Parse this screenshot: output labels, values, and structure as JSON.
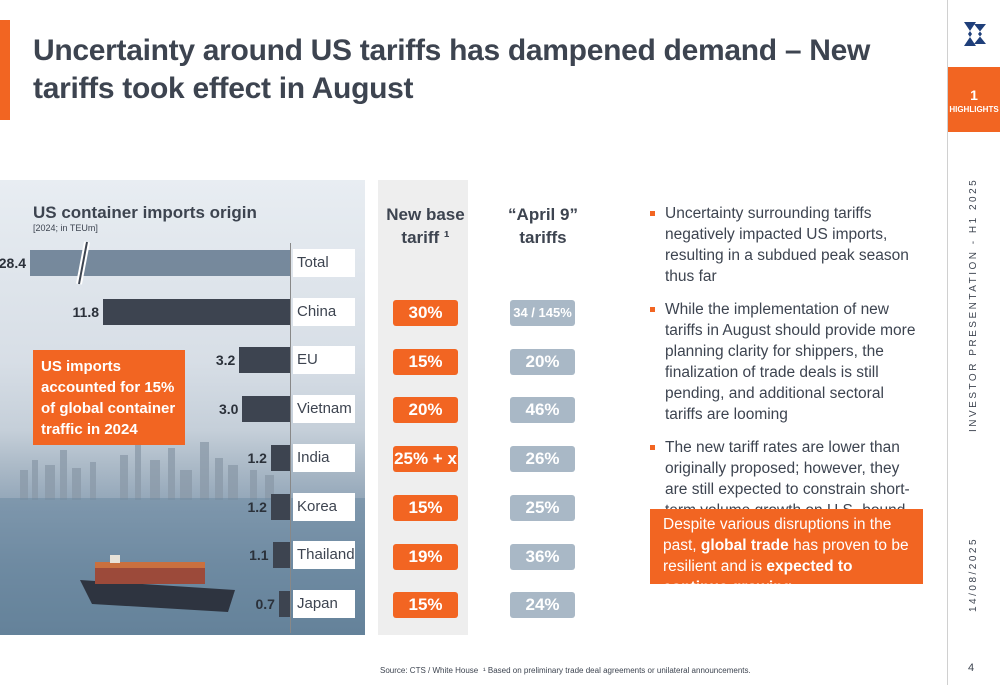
{
  "title": "Uncertainty around US tariffs has dampened demand – New tariffs took effect in August",
  "sidebar": {
    "section_number": "1",
    "section_label": "HIGHLIGHTS",
    "presentation_label": "INVESTOR PRESENTATION - H1 2025",
    "date": "14/08/2025",
    "page_number": "4"
  },
  "chart": {
    "title": "US container imports origin",
    "subtitle": "[2024; in TEUm]",
    "callout": "US imports accounted for 15% of global container traffic in 2024"
  },
  "chart_data": {
    "type": "bar",
    "title": "US container imports origin",
    "subtitle": "[2024; in TEUm]",
    "categories": [
      "Total",
      "China",
      "EU",
      "Vietnam",
      "India",
      "Korea",
      "Thailand",
      "Japan"
    ],
    "values": [
      28.4,
      11.8,
      3.2,
      3.0,
      1.2,
      1.2,
      1.1,
      0.7
    ],
    "value_labels": [
      "28.4",
      "11.8",
      "3.2",
      "3.0",
      "1.2",
      "1.2",
      "1.1",
      "0.7"
    ],
    "axis_break": "Total bar truncated"
  },
  "tariffs": {
    "new_base_header": "New base tariff ¹",
    "april9_header": "“April 9” tariffs",
    "rows": [
      {
        "country": "China",
        "new_base": "30%",
        "april9": "34 / 145%"
      },
      {
        "country": "EU",
        "new_base": "15%",
        "april9": "20%"
      },
      {
        "country": "Vietnam",
        "new_base": "20%",
        "april9": "46%"
      },
      {
        "country": "India",
        "new_base": "25% + x",
        "april9": "26%"
      },
      {
        "country": "Korea",
        "new_base": "15%",
        "april9": "25%"
      },
      {
        "country": "Thailand",
        "new_base": "19%",
        "april9": "36%"
      },
      {
        "country": "Japan",
        "new_base": "15%",
        "april9": "24%"
      }
    ]
  },
  "bullets": [
    "Uncertainty surrounding tariffs negatively impacted US imports, resulting in a subdued peak season thus far",
    "While the implementation of new tariffs in August should provide more planning clarity for shippers, the finalization of trade deals is still pending, and additional sectoral tariffs are looming",
    "The new tariff rates are lower than originally proposed; however, they are still expected to constrain short-term volume growth on U.S.-bound routes"
  ],
  "takeaway": {
    "part1": "Despite various disruptions in the past, ",
    "bold1": "global trade",
    "part2": " has proven to be resilient and is ",
    "bold2": "expected to continue growing"
  },
  "footnotes": {
    "source": "Source: CTS / White House",
    "note": "¹ Based on preliminary trade deal agreements or unilateral announcements."
  },
  "colors": {
    "accent": "#f26522",
    "dark": "#3d4450",
    "pill_grey": "#a9b8c6"
  }
}
